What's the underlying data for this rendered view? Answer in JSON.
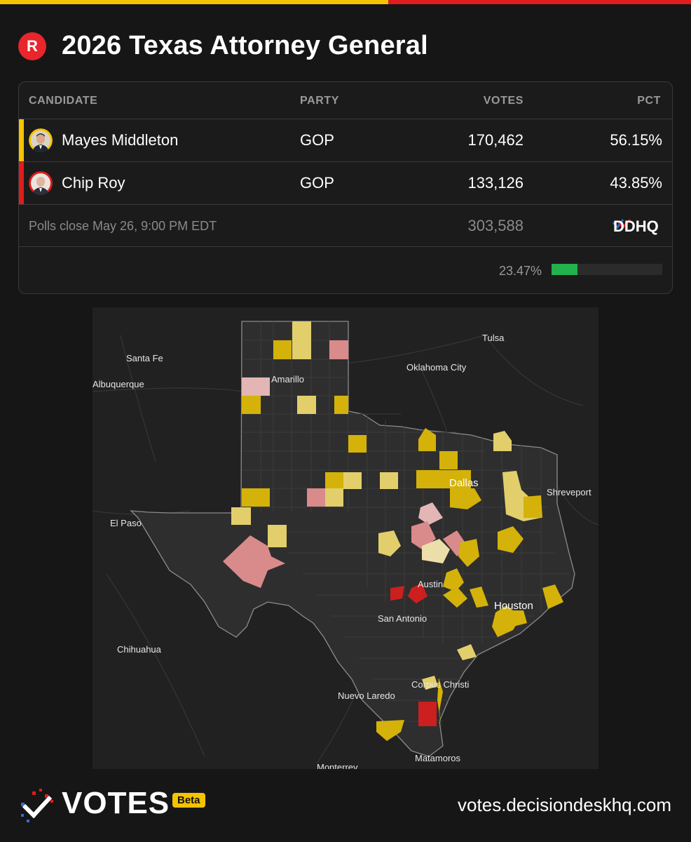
{
  "header": {
    "party_badge": "R",
    "title": "2026 Texas Attorney General"
  },
  "table": {
    "columns": {
      "candidate": "CANDIDATE",
      "party": "PARTY",
      "votes": "VOTES",
      "pct": "PCT"
    },
    "rows": [
      {
        "name": "Mayes Middleton",
        "party": "GOP",
        "votes": "170,462",
        "pct": "56.15%",
        "color": "#f5c300"
      },
      {
        "name": "Chip Roy",
        "party": "GOP",
        "votes": "133,126",
        "pct": "43.85%",
        "color": "#e01c1c"
      }
    ],
    "polls_close": "Polls close May 26, 9:00 PM EDT",
    "total_votes": "303,588",
    "source_logo": "DDHQ",
    "reporting_pct": "23.47%",
    "reporting_fraction": 0.2347
  },
  "map": {
    "cities": {
      "tulsa": "Tulsa",
      "santa_fe": "Santa Fe",
      "oklahoma_city": "Oklahoma City",
      "albuquerque": "Albuquerque",
      "amarillo": "Amarillo",
      "dallas": "Dallas",
      "shreveport": "Shreveport",
      "el_paso": "El Paso",
      "austin": "Austin",
      "houston": "Houston",
      "san_antonio": "San Antonio",
      "chihuahua": "Chihuahua",
      "corpus_christi": "Corpus Christi",
      "nuevo_laredo": "Nuevo Laredo",
      "matamoros": "Matamoros",
      "monterrey": "Monterrey"
    },
    "legend_colors": {
      "middleton_strong": "#d4b20a",
      "middleton_lean": "#e2cf6c",
      "roy_strong": "#cc1f1f",
      "roy_lean": "#d98a8a",
      "no_data": "#2e2e2e"
    }
  },
  "footer": {
    "brand": "VOTES",
    "beta": "Beta",
    "site": "votes.decisiondeskhq.com"
  }
}
